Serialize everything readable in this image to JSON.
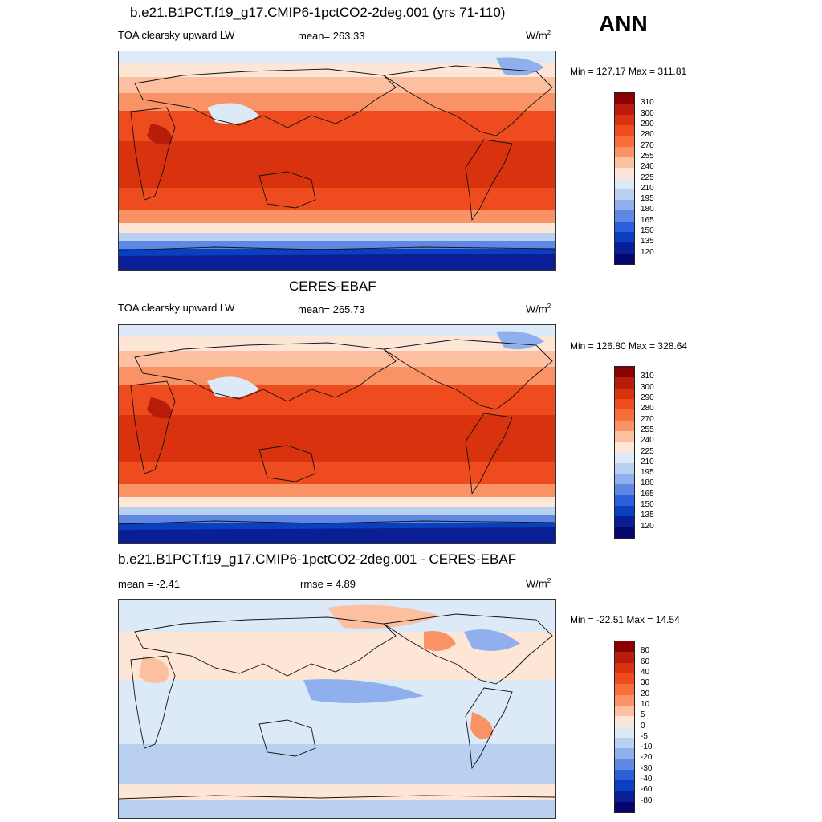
{
  "season": "ANN",
  "panels": [
    {
      "title": "b.e21.B1PCT.f19_g17.CMIP6-1pctCO2-2deg.001 (yrs 71-110)",
      "left": "TOA clearsky upward LW",
      "center": "mean= 263.33",
      "units": "W/m",
      "units_sup": "2",
      "minmax": "Min = 127.17 Max = 311.81",
      "kind": "field"
    },
    {
      "title": "CERES-EBAF",
      "left": "TOA clearsky upward LW",
      "center": "mean= 265.73",
      "units": "W/m",
      "units_sup": "2",
      "minmax": "Min = 126.80 Max = 328.64",
      "kind": "field"
    },
    {
      "title": "b.e21.B1PCT.f19_g17.CMIP6-1pctCO2-2deg.001 - CERES-EBAF",
      "left": "mean =  -2.41",
      "center": "rmse =   4.89",
      "units": "W/m",
      "units_sup": "2",
      "minmax": "Min = -22.51 Max =  14.54",
      "kind": "diff"
    }
  ],
  "chart_data": [
    {
      "type": "heatmap",
      "title": "b.e21.B1PCT.f19_g17.CMIP6-1pctCO2-2deg.001 (yrs 71-110)",
      "variable": "TOA clearsky upward LW",
      "units": "W/m2",
      "mean": 263.33,
      "min": 127.17,
      "max": 311.81,
      "colorbar_levels": [
        310,
        300,
        290,
        280,
        270,
        255,
        240,
        225,
        210,
        195,
        180,
        165,
        150,
        135,
        120
      ],
      "colorbar_colors": [
        "#8b0000",
        "#b81d0c",
        "#d8320f",
        "#ee4c1f",
        "#f76d3c",
        "#f99366",
        "#fcbfa0",
        "#fde6d5",
        "#dce9f6",
        "#b9d0f0",
        "#8fb0ec",
        "#5e88e3",
        "#2c5fd8",
        "#0a3fc0",
        "#0a1f96",
        "#04056e"
      ]
    },
    {
      "type": "heatmap",
      "title": "CERES-EBAF",
      "variable": "TOA clearsky upward LW",
      "units": "W/m2",
      "mean": 265.73,
      "min": 126.8,
      "max": 328.64,
      "colorbar_levels": [
        310,
        300,
        290,
        280,
        270,
        255,
        240,
        225,
        210,
        195,
        180,
        165,
        150,
        135,
        120
      ],
      "colorbar_colors": [
        "#8b0000",
        "#b81d0c",
        "#d8320f",
        "#ee4c1f",
        "#f76d3c",
        "#f99366",
        "#fcbfa0",
        "#fde6d5",
        "#dce9f6",
        "#b9d0f0",
        "#8fb0ec",
        "#5e88e3",
        "#2c5fd8",
        "#0a3fc0",
        "#0a1f96",
        "#04056e"
      ]
    },
    {
      "type": "heatmap",
      "title": "b.e21.B1PCT.f19_g17.CMIP6-1pctCO2-2deg.001 - CERES-EBAF",
      "units": "W/m2",
      "mean": -2.41,
      "rmse": 4.89,
      "min": -22.51,
      "max": 14.54,
      "colorbar_levels": [
        80,
        60,
        40,
        30,
        20,
        10,
        5,
        0,
        -5,
        -10,
        -20,
        -30,
        -40,
        -60,
        -80
      ],
      "colorbar_colors": [
        "#8b0000",
        "#b81d0c",
        "#d8320f",
        "#ee4c1f",
        "#f76d3c",
        "#f99366",
        "#fcbfa0",
        "#fde6d5",
        "#dce9f6",
        "#b9d0f0",
        "#8fb0ec",
        "#5e88e3",
        "#2c5fd8",
        "#0a3fc0",
        "#0a1f96",
        "#04056e"
      ]
    }
  ]
}
